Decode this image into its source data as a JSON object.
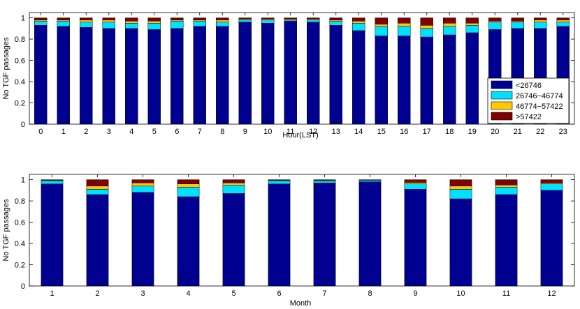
{
  "colors": {
    "s1": "#000090",
    "s2": "#00e0ff",
    "s3": "#ffc800",
    "s4": "#800000"
  },
  "legend": [
    "<26746",
    "26746−46774",
    "46774−57422",
    ">57422"
  ],
  "chart_data": [
    {
      "type": "bar",
      "stacked": true,
      "title": "",
      "xlabel": "Hour(LST)",
      "ylabel": "No TGF passages",
      "ylim": [
        0,
        1.05
      ],
      "yticks": [
        "0",
        "0.2",
        "0.4",
        "0.6",
        "0.8",
        "1"
      ],
      "legend_position": "lower-right",
      "categories": [
        "0",
        "1",
        "2",
        "3",
        "4",
        "5",
        "6",
        "7",
        "8",
        "9",
        "10",
        "11",
        "12",
        "13",
        "14",
        "15",
        "16",
        "17",
        "18",
        "19",
        "20",
        "21",
        "22",
        "23"
      ],
      "series": [
        {
          "name": "<26746",
          "values": [
            0.93,
            0.92,
            0.91,
            0.9,
            0.9,
            0.89,
            0.9,
            0.92,
            0.92,
            0.96,
            0.95,
            0.97,
            0.96,
            0.93,
            0.88,
            0.83,
            0.83,
            0.82,
            0.84,
            0.86,
            0.89,
            0.9,
            0.9,
            0.92
          ]
        },
        {
          "name": "26746-46774",
          "values": [
            0.04,
            0.05,
            0.05,
            0.06,
            0.05,
            0.06,
            0.07,
            0.05,
            0.04,
            0.02,
            0.03,
            0.01,
            0.02,
            0.04,
            0.07,
            0.09,
            0.09,
            0.08,
            0.08,
            0.07,
            0.07,
            0.06,
            0.06,
            0.04
          ]
        },
        {
          "name": "46774-57422",
          "values": [
            0.01,
            0.01,
            0.02,
            0.02,
            0.02,
            0.02,
            0.01,
            0.01,
            0.02,
            0.01,
            0.01,
            0.01,
            0.01,
            0.01,
            0.02,
            0.02,
            0.03,
            0.03,
            0.03,
            0.02,
            0.01,
            0.01,
            0.02,
            0.02
          ]
        },
        {
          "name": ">57422",
          "values": [
            0.02,
            0.02,
            0.02,
            0.02,
            0.03,
            0.03,
            0.02,
            0.02,
            0.02,
            0.01,
            0.01,
            0.01,
            0.01,
            0.02,
            0.03,
            0.06,
            0.05,
            0.07,
            0.05,
            0.05,
            0.03,
            0.03,
            0.02,
            0.02
          ]
        }
      ]
    },
    {
      "type": "bar",
      "stacked": true,
      "title": "",
      "xlabel": "Month",
      "ylabel": "No TGF passages",
      "ylim": [
        0,
        1.05
      ],
      "yticks": [
        "0",
        "0.2",
        "0.4",
        "0.6",
        "0.8",
        "1"
      ],
      "categories": [
        "1",
        "2",
        "3",
        "4",
        "5",
        "6",
        "7",
        "8",
        "9",
        "10",
        "11",
        "12"
      ],
      "series": [
        {
          "name": "<26746",
          "values": [
            0.96,
            0.86,
            0.88,
            0.84,
            0.87,
            0.96,
            0.97,
            0.98,
            0.91,
            0.82,
            0.86,
            0.9
          ]
        },
        {
          "name": "26746-46774",
          "values": [
            0.03,
            0.05,
            0.06,
            0.09,
            0.08,
            0.03,
            0.02,
            0.015,
            0.05,
            0.09,
            0.07,
            0.06
          ]
        },
        {
          "name": "46774-57422",
          "values": [
            0.005,
            0.03,
            0.03,
            0.03,
            0.02,
            0.005,
            0.005,
            0.0,
            0.015,
            0.03,
            0.02,
            0.01
          ]
        },
        {
          "name": ">57422",
          "values": [
            0.005,
            0.06,
            0.03,
            0.04,
            0.03,
            0.005,
            0.005,
            0.005,
            0.025,
            0.06,
            0.05,
            0.03
          ]
        }
      ]
    }
  ]
}
